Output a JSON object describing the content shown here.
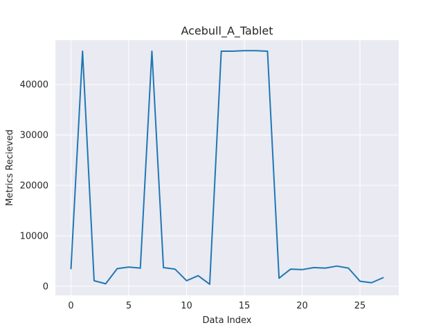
{
  "chart_data": {
    "type": "line",
    "title": "Acebull_A_Tablet",
    "xlabel": "Data Index",
    "ylabel": "Metrics Recieved",
    "xlim": [
      -1.35,
      28.35
    ],
    "ylim": [
      -1800,
      48800
    ],
    "xticks": [
      0,
      5,
      10,
      15,
      20,
      25
    ],
    "yticks": [
      0,
      10000,
      20000,
      30000,
      40000
    ],
    "grid": true,
    "background": "#eaeaf2",
    "gridColor": "#ffffff",
    "series": [
      {
        "color": "#1f77b4",
        "x": [
          0,
          1,
          2,
          3,
          4,
          5,
          6,
          7,
          8,
          9,
          10,
          11,
          12,
          13,
          14,
          15,
          16,
          17,
          18,
          19,
          20,
          21,
          22,
          23,
          24,
          25,
          26,
          27
        ],
        "y": [
          3500,
          46600,
          1100,
          500,
          3500,
          3800,
          3600,
          46600,
          3700,
          3400,
          1100,
          2100,
          400,
          46600,
          46600,
          46700,
          46700,
          46600,
          1600,
          3400,
          3300,
          3700,
          3600,
          4000,
          3600,
          1000,
          700,
          1700
        ]
      }
    ]
  }
}
